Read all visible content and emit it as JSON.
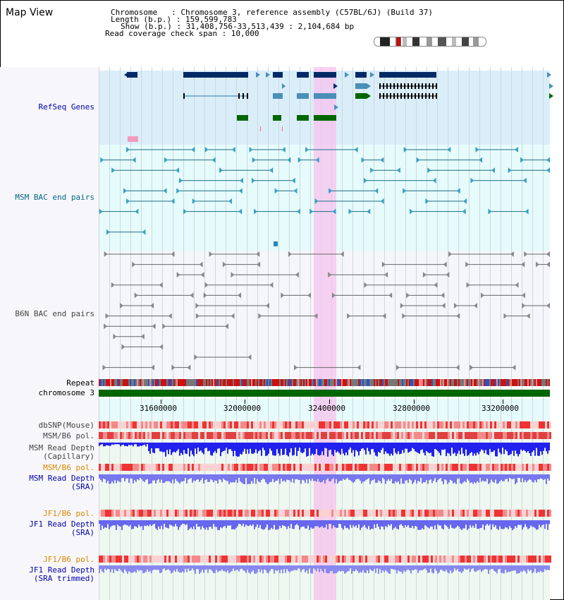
{
  "header": {
    "view_title": "Map View",
    "chromosome_line": "Chromosome   : Chromosome 3, reference assembly (C57BL/6J) (Build 37)",
    "length_line": "Length (b.p.) : 159,599,783",
    "show_line": "Show (b.p.) : 31,408,756-33,513,439 : 2,104,684 bp",
    "coverage_line": "Read coverage check span : 10,000"
  },
  "tracks": {
    "refseq": {
      "label": "RefSeq Genes",
      "color": "#0000aa"
    },
    "msm_bac": {
      "label": "MSM BAC end pairs",
      "color": "#006688"
    },
    "b6n_bac": {
      "label": "B6N BAC end pairs",
      "color": "#444444"
    },
    "repeat": {
      "label": "Repeat"
    },
    "chromosome": {
      "label": "chromosome 3"
    },
    "dbsnp": {
      "label": "dbSNP(Mouse)"
    },
    "msm_b6_pol_1": {
      "label": "MSM/B6 pol."
    },
    "msm_read_depth_cap": {
      "label": "MSM Read Depth\n(Capillary)"
    },
    "msm_b6_pol_2": {
      "label": "MSM/B6 pol."
    },
    "msm_read_depth_sra": {
      "label": "MSM Read Depth\n(SRA)"
    },
    "jf1_b6_pol_1": {
      "label": "JF1/B6 pol."
    },
    "jf1_read_depth_sra": {
      "label": "JF1 Read Depth\n(SRA)"
    },
    "jf1_b6_pol_2": {
      "label": "JF1/B6 pol."
    },
    "jf1_read_depth_trim": {
      "label": "JF1 Read Depth\n(SRA trimmed)"
    }
  },
  "ruler": {
    "ticks": [
      "31600000",
      "32000000",
      "32400000",
      "32800000",
      "33200000"
    ]
  },
  "colors": {
    "refseq_bg": "#daeefa",
    "bac_bg": "#e6fbfb",
    "b6n_bg": "#f4f6fa",
    "highlight": "#f7c3ee",
    "gene_dark": "#002a66",
    "gene_mid": "#4a8fb8",
    "gene_green": "#006600",
    "chromosome_green": "#006600"
  }
}
